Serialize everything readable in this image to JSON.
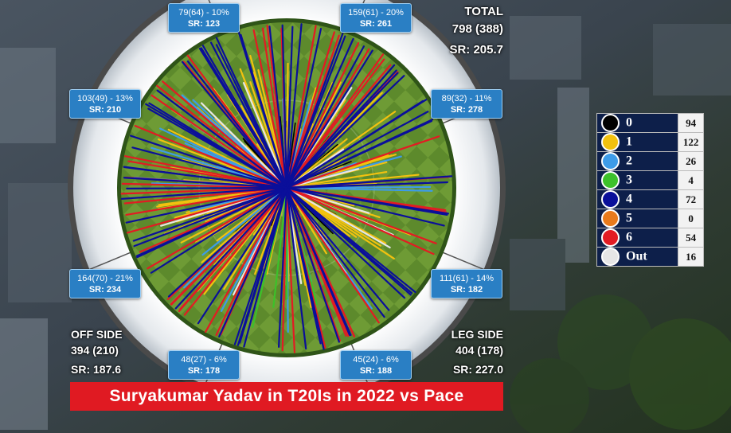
{
  "chart_data": {
    "type": "wagon-wheel",
    "title": "Suryakumar Yadav in T20Is in 2022 vs Pace",
    "total": {
      "label": "TOTAL",
      "runs_balls": "798 (388)",
      "sr": "SR: 205.7"
    },
    "off_side": {
      "label": "OFF SIDE",
      "runs_balls": "394 (210)",
      "sr": "SR: 187.6"
    },
    "leg_side": {
      "label": "LEG SIDE",
      "runs_balls": "404 (178)",
      "sr": "SR: 227.0"
    },
    "zones": [
      {
        "summary": "79(64) - 10%",
        "sr": "SR: 123",
        "runs": 79,
        "balls": 64,
        "pct": 10,
        "strike_rate": 123
      },
      {
        "summary": "159(61) - 20%",
        "sr": "SR: 261",
        "runs": 159,
        "balls": 61,
        "pct": 20,
        "strike_rate": 261
      },
      {
        "summary": "89(32) - 11%",
        "sr": "SR: 278",
        "runs": 89,
        "balls": 32,
        "pct": 11,
        "strike_rate": 278
      },
      {
        "summary": "111(61) - 14%",
        "sr": "SR: 182",
        "runs": 111,
        "balls": 61,
        "pct": 14,
        "strike_rate": 182
      },
      {
        "summary": "45(24) - 6%",
        "sr": "SR: 188",
        "runs": 45,
        "balls": 24,
        "pct": 6,
        "strike_rate": 188
      },
      {
        "summary": "48(27) - 6%",
        "sr": "SR: 178",
        "runs": 48,
        "balls": 27,
        "pct": 6,
        "strike_rate": 178
      },
      {
        "summary": "164(70) - 21%",
        "sr": "SR: 234",
        "runs": 164,
        "balls": 70,
        "pct": 21,
        "strike_rate": 234
      },
      {
        "summary": "103(49) - 13%",
        "sr": "SR: 210",
        "runs": 103,
        "balls": 49,
        "pct": 13,
        "strike_rate": 210
      }
    ],
    "legend": [
      {
        "label": "0",
        "count": "94",
        "color": "#000000"
      },
      {
        "label": "1",
        "count": "122",
        "color": "#f2c10f"
      },
      {
        "label": "2",
        "count": "26",
        "color": "#3d9be9"
      },
      {
        "label": "3",
        "count": "4",
        "color": "#3cc12a"
      },
      {
        "label": "4",
        "count": "72",
        "color": "#0a0f9a"
      },
      {
        "label": "5",
        "count": "0",
        "color": "#e87a1c"
      },
      {
        "label": "6",
        "count": "54",
        "color": "#e31b23"
      },
      {
        "label": "Out",
        "count": "16",
        "color": "#e6e6e6"
      }
    ]
  }
}
